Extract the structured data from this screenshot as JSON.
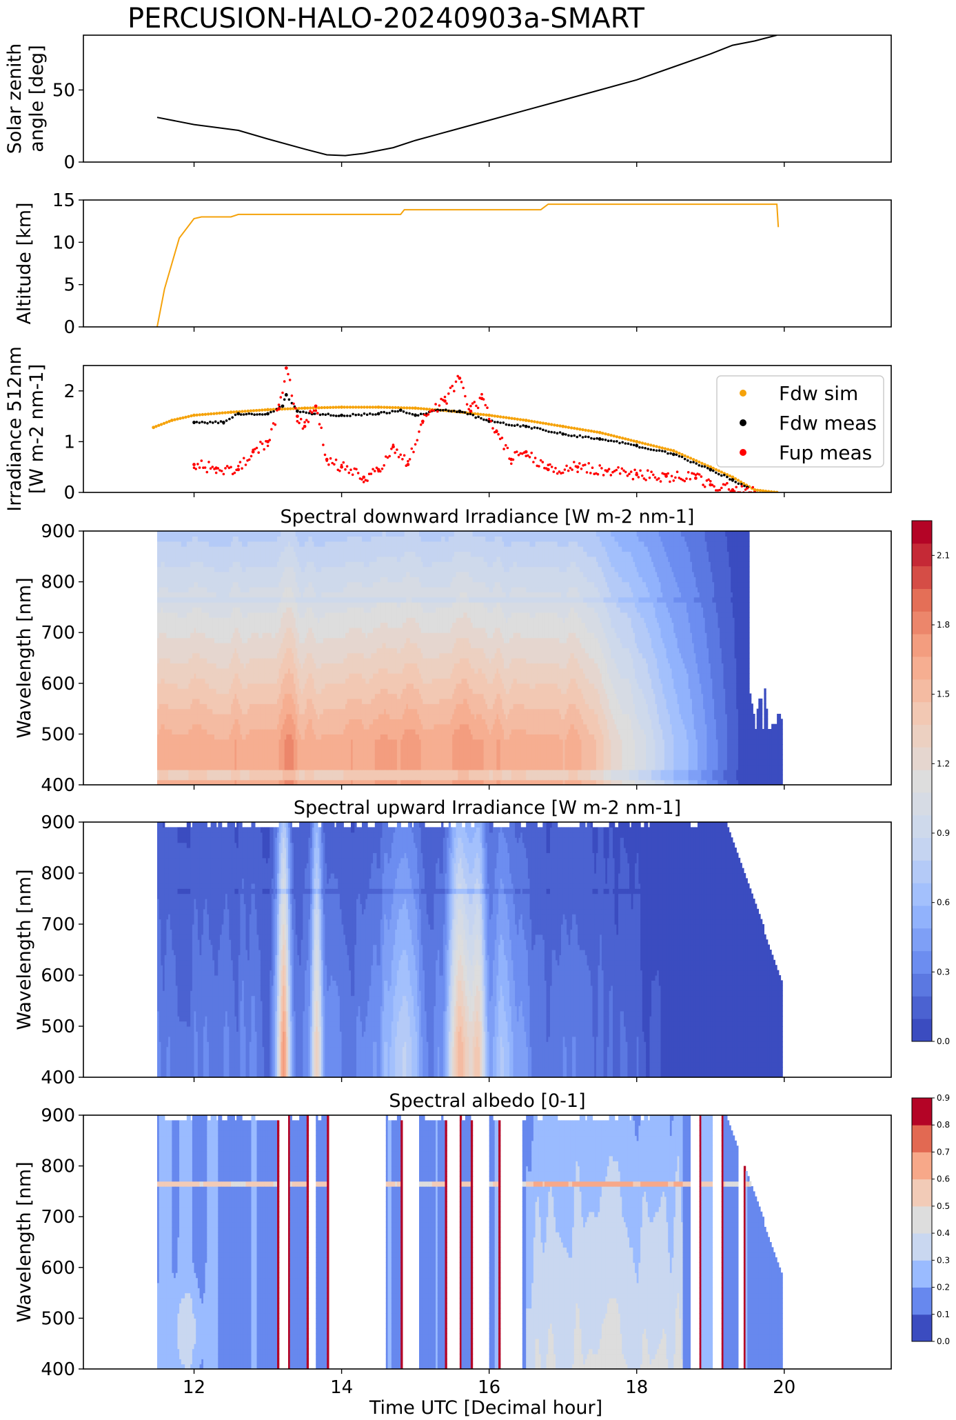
{
  "figure": {
    "title": "PERCUSION-HALO-20240903a-SMART",
    "xlabel": "Time UTC [Decimal hour]"
  },
  "colors": {
    "sza_line": "#000000",
    "altitude_line": "#f5a20a",
    "fdw_sim": "#f5a20a",
    "fdw_meas": "#000000",
    "fup_meas": "#ff0000",
    "coolwarm": [
      "#3b4cc0",
      "#6788ee",
      "#9abbff",
      "#c9d7f0",
      "#dddddd",
      "#f2cbb7",
      "#f7a889",
      "#e26952",
      "#b40426"
    ]
  },
  "chart_data": [
    {
      "id": "sza",
      "type": "line",
      "title": "",
      "xlabel": "",
      "ylabel": [
        "Solar zenith",
        "angle [deg]"
      ],
      "xlim": [
        10.5,
        21.45
      ],
      "ylim": [
        0,
        88
      ],
      "xticks": [
        12,
        14,
        16,
        18,
        20
      ],
      "yticks": [
        0,
        50
      ],
      "grid": false,
      "series": [
        {
          "x": [
            11.5,
            12.0,
            12.6,
            13.0,
            13.5,
            13.8,
            14.05,
            14.3,
            14.7,
            15.0,
            15.5,
            16.0,
            16.5,
            17.0,
            17.5,
            18.0,
            18.5,
            19.0,
            19.3,
            19.6,
            19.9
          ],
          "y": [
            31,
            26,
            22,
            16,
            9,
            5,
            4.5,
            6,
            10,
            15,
            22,
            29,
            36,
            43,
            50,
            57,
            66,
            75,
            81,
            84,
            88
          ]
        }
      ]
    },
    {
      "id": "altitude",
      "type": "line",
      "title": "",
      "xlabel": "",
      "ylabel": [
        "Altitude [km]"
      ],
      "xlim": [
        10.5,
        21.45
      ],
      "ylim": [
        0,
        15
      ],
      "xticks": [
        12,
        14,
        16,
        18,
        20
      ],
      "yticks": [
        0,
        5,
        10,
        15
      ],
      "grid": false,
      "series": [
        {
          "x": [
            11.5,
            11.6,
            11.8,
            12.0,
            12.1,
            12.5,
            12.6,
            14.8,
            14.85,
            16.7,
            16.8,
            19.0,
            19.9,
            19.92
          ],
          "y": [
            0,
            4.5,
            10.5,
            12.8,
            13.0,
            13.0,
            13.3,
            13.3,
            13.85,
            13.85,
            14.5,
            14.5,
            14.5,
            11.8
          ]
        }
      ]
    },
    {
      "id": "irradiance512",
      "type": "scatter",
      "title": "",
      "xlabel": "",
      "ylabel": [
        "Irradiance 512nm",
        "[W m-2 nm-1]"
      ],
      "xlim": [
        10.5,
        21.45
      ],
      "ylim": [
        0,
        2.5
      ],
      "xticks": [
        12,
        14,
        16,
        18,
        20
      ],
      "yticks": [
        0,
        1,
        2
      ],
      "grid": false,
      "legend": "top-right",
      "series": [
        {
          "name": "Fdw sim",
          "x": [
            11.45,
            11.7,
            12.0,
            12.5,
            13.0,
            13.5,
            14.0,
            14.5,
            15.0,
            15.5,
            16.0,
            16.5,
            17.0,
            17.5,
            18.0,
            18.5,
            19.0,
            19.3,
            19.6,
            19.9
          ],
          "y": [
            1.28,
            1.42,
            1.52,
            1.58,
            1.63,
            1.66,
            1.68,
            1.68,
            1.66,
            1.6,
            1.52,
            1.42,
            1.3,
            1.18,
            1.0,
            0.82,
            0.5,
            0.3,
            0.05,
            0.0
          ]
        },
        {
          "name": "Fdw meas",
          "x": [
            12.0,
            12.4,
            12.6,
            13.0,
            13.2,
            13.25,
            13.4,
            13.6,
            14.0,
            14.5,
            14.8,
            15.0,
            15.3,
            15.6,
            16.0,
            16.5,
            17.0,
            17.5,
            18.0,
            18.5,
            19.0,
            19.3,
            19.5
          ],
          "y": [
            1.38,
            1.38,
            1.55,
            1.55,
            1.7,
            1.92,
            1.6,
            1.55,
            1.52,
            1.55,
            1.62,
            1.52,
            1.62,
            1.6,
            1.4,
            1.3,
            1.15,
            1.05,
            0.92,
            0.75,
            0.45,
            0.25,
            0.1
          ]
        },
        {
          "name": "Fup meas",
          "x": [
            12.0,
            12.3,
            12.6,
            12.8,
            13.0,
            13.15,
            13.25,
            13.4,
            13.5,
            13.65,
            13.8,
            14.0,
            14.3,
            14.5,
            14.7,
            14.9,
            15.1,
            15.4,
            15.6,
            15.75,
            15.9,
            16.1,
            16.3,
            16.5,
            16.8,
            17.2,
            17.6,
            18.0,
            18.4,
            18.8,
            19.0,
            19.3,
            19.6
          ],
          "y": [
            0.55,
            0.48,
            0.45,
            0.8,
            1.0,
            1.65,
            2.45,
            1.5,
            1.3,
            1.7,
            0.65,
            0.5,
            0.3,
            0.45,
            0.9,
            0.55,
            1.4,
            1.8,
            2.25,
            1.6,
            1.85,
            1.2,
            0.65,
            0.8,
            0.45,
            0.5,
            0.42,
            0.35,
            0.32,
            0.28,
            0.15,
            0.05,
            0.0
          ]
        }
      ]
    },
    {
      "id": "spectral_down",
      "type": "heatmap",
      "title": "Spectral downward Irradiance [W m-2 nm-1]",
      "xlabel": "",
      "ylabel": [
        "Wavelength [nm]"
      ],
      "xlim": [
        10.5,
        21.45
      ],
      "ylim": [
        400,
        900
      ],
      "xticks": [
        12,
        14,
        16,
        18,
        20
      ],
      "yticks": [
        400,
        500,
        600,
        700,
        800,
        900
      ],
      "x_coverage": [
        11.5,
        19.95
      ]
    },
    {
      "id": "spectral_up",
      "type": "heatmap",
      "title": "Spectral upward Irradiance [W m-2 nm-1]",
      "xlabel": "",
      "ylabel": [
        "Wavelength [nm]"
      ],
      "xlim": [
        10.5,
        21.45
      ],
      "ylim": [
        400,
        900
      ],
      "xticks": [
        12,
        14,
        16,
        18,
        20
      ],
      "yticks": [
        400,
        500,
        600,
        700,
        800,
        900
      ],
      "x_coverage": [
        11.5,
        19.95
      ]
    },
    {
      "id": "spectral_albedo",
      "type": "heatmap",
      "title": "Spectral albedo [0-1]",
      "xlabel": "Time UTC [Decimal hour]",
      "ylabel": [
        "Wavelength [nm]"
      ],
      "xlim": [
        10.5,
        21.45
      ],
      "ylim": [
        400,
        900
      ],
      "xticks": [
        12,
        14,
        16,
        18,
        20
      ],
      "yticks": [
        400,
        500,
        600,
        700,
        800,
        900
      ],
      "x_coverage": [
        11.5,
        19.95
      ]
    }
  ],
  "colorbars": [
    {
      "id": "irradiance_colorbar",
      "range": [
        0,
        2.25
      ],
      "ticks": [
        "0.0",
        "0.3",
        "0.6",
        "0.9",
        "1.2",
        "1.5",
        "1.8",
        "2.1"
      ],
      "tick_values": [
        0,
        0.3,
        0.6,
        0.9,
        1.2,
        1.5,
        1.8,
        2.1
      ]
    },
    {
      "id": "albedo_colorbar",
      "range": [
        0,
        0.9
      ],
      "ticks": [
        "0.0",
        "0.1",
        "0.2",
        "0.3",
        "0.4",
        "0.5",
        "0.6",
        "0.7",
        "0.8",
        "0.9"
      ],
      "tick_values": [
        0,
        0.1,
        0.2,
        0.3,
        0.4,
        0.5,
        0.6,
        0.7,
        0.8,
        0.9
      ]
    }
  ]
}
